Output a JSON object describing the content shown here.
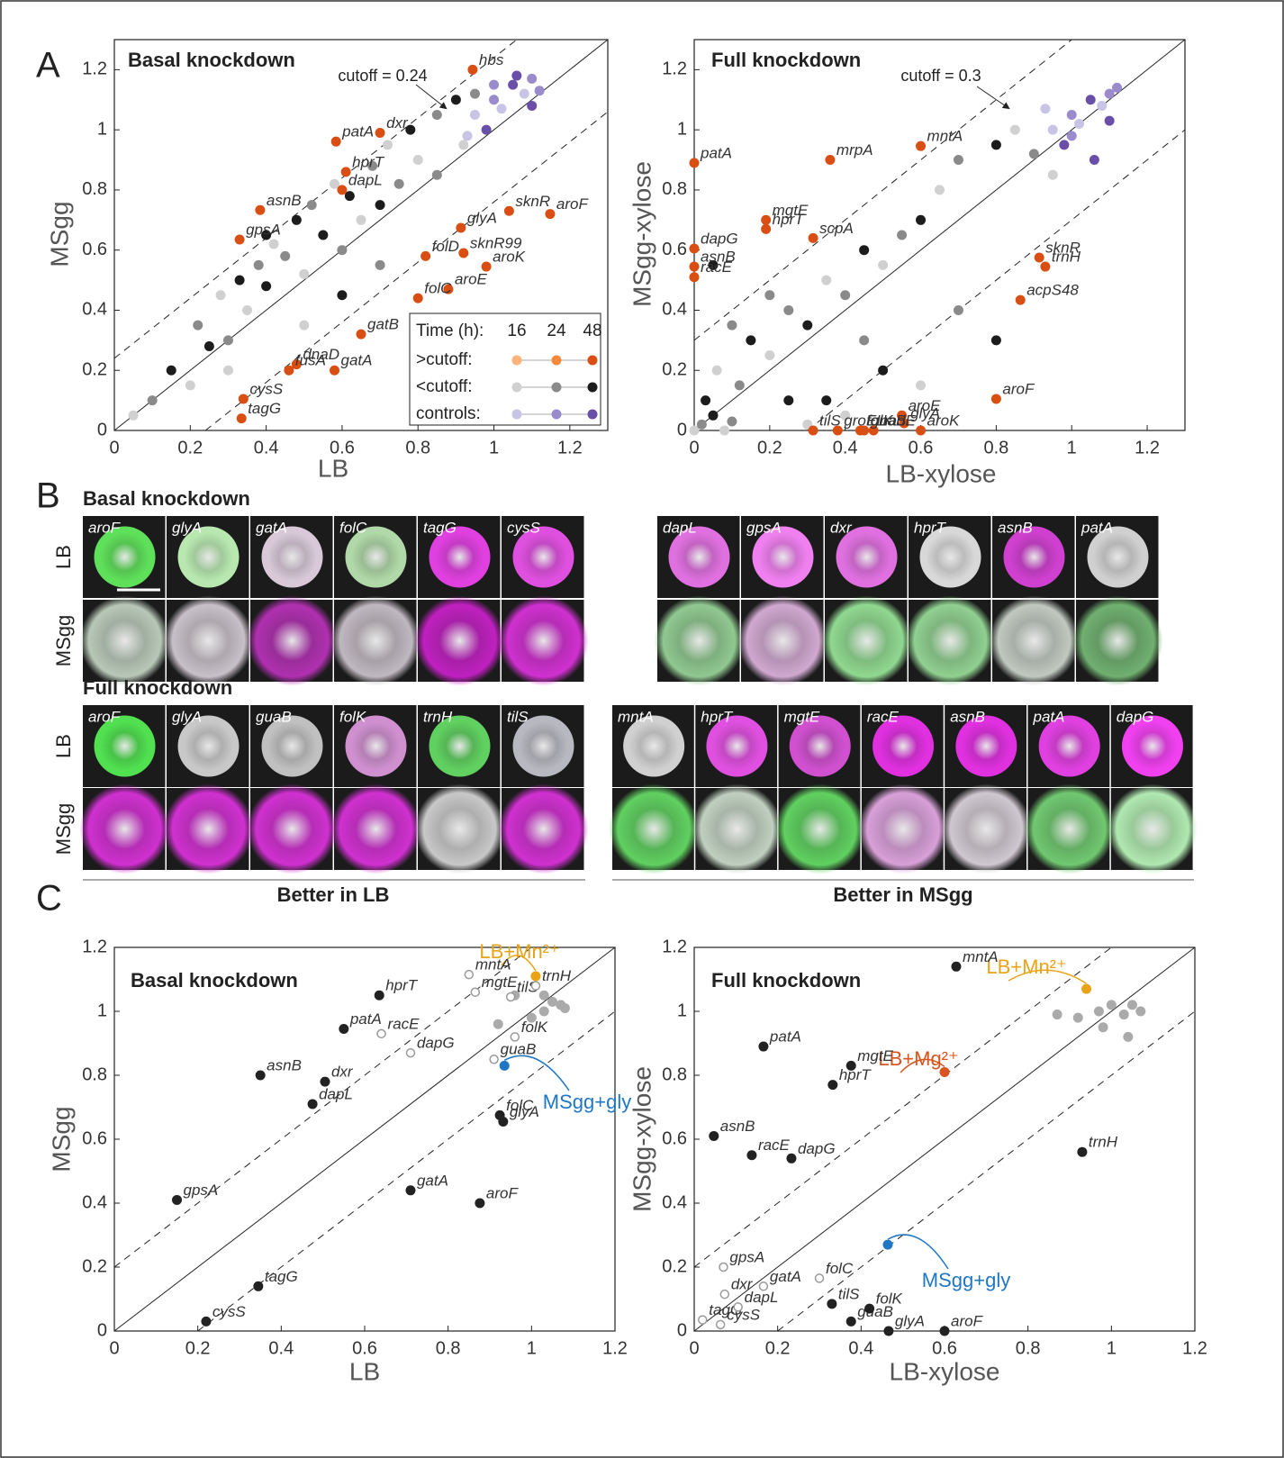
{
  "panel_labels": [
    "A",
    "B",
    "C"
  ],
  "chart_data": [
    {
      "type": "scatter",
      "title": "Basal knockdown",
      "x_label": "LB",
      "y_label": "MSgg",
      "xlim": [
        0,
        1.3
      ],
      "ylim": [
        0,
        1.3
      ],
      "xticks": [
        0,
        0.2,
        0.4,
        0.6,
        0.8,
        1,
        1.2
      ],
      "yticks": [
        0,
        0.2,
        0.4,
        0.6,
        0.8,
        1,
        1.2
      ],
      "cutoff": 0.24,
      "annotation": "cutoff = 0.24",
      "legend_title": "Time (h):",
      "times": [
        16,
        24,
        48
      ],
      "series": [
        {
          "name": ">cutoff:",
          "colors": [
            "#fdb27b",
            "#f5883a",
            "#d94e12"
          ],
          "labels": [
            "hbs",
            "patA",
            "dxr",
            "hprT",
            "dapL",
            "asnB",
            "gpsA",
            "glyA",
            "aroF",
            "sknR",
            "sknR99",
            "folD",
            "aroK",
            "aroE",
            "folC",
            "gatB",
            "dnaD",
            "fusA",
            "gatA",
            "cysS",
            "tagG"
          ],
          "x": [
            0.944,
            0.584,
            0.7,
            0.61,
            0.6,
            0.384,
            0.33,
            0.913,
            1.148,
            1.04,
            0.92,
            0.82,
            0.98,
            0.88,
            0.8,
            0.65,
            0.48,
            0.46,
            0.58,
            0.34,
            0.335
          ],
          "y": [
            1.2,
            0.961,
            0.99,
            0.86,
            0.8,
            0.733,
            0.635,
            0.674,
            0.72,
            0.73,
            0.59,
            0.58,
            0.545,
            0.47,
            0.44,
            0.32,
            0.22,
            0.2,
            0.2,
            0.105,
            0.04
          ],
          "time": [
            48,
            48,
            48,
            48,
            48,
            48,
            48,
            48,
            48,
            48,
            48,
            48,
            48,
            48,
            48,
            48,
            48,
            48,
            48,
            48,
            48
          ]
        },
        {
          "name": "<cutoff:",
          "colors": [
            "#d0d0d0",
            "#8a8a8a",
            "#1c1c1c"
          ],
          "x": [
            0.05,
            0.1,
            0.15,
            0.2,
            0.22,
            0.25,
            0.28,
            0.3,
            0.33,
            0.35,
            0.38,
            0.4,
            0.42,
            0.45,
            0.48,
            0.5,
            0.52,
            0.55,
            0.58,
            0.6,
            0.62,
            0.65,
            0.68,
            0.7,
            0.72,
            0.75,
            0.78,
            0.8,
            0.85,
            0.9,
            0.92,
            0.95,
            0.6,
            0.5,
            0.7,
            0.4,
            0.3,
            0.85
          ],
          "y": [
            0.05,
            0.1,
            0.2,
            0.15,
            0.35,
            0.28,
            0.45,
            0.3,
            0.5,
            0.4,
            0.55,
            0.48,
            0.62,
            0.58,
            0.7,
            0.52,
            0.75,
            0.65,
            0.82,
            0.6,
            0.78,
            0.7,
            0.88,
            0.75,
            0.95,
            0.82,
            1.0,
            0.9,
            1.05,
            1.1,
            0.95,
            1.12,
            0.45,
            0.35,
            0.55,
            0.65,
            0.2,
            0.85
          ],
          "time": [
            16,
            24,
            48,
            16,
            24,
            48,
            16,
            24,
            48,
            16,
            24,
            48,
            16,
            24,
            48,
            16,
            24,
            48,
            16,
            24,
            48,
            16,
            24,
            48,
            16,
            24,
            48,
            16,
            24,
            48,
            16,
            24,
            48,
            16,
            24,
            48,
            16,
            24
          ]
        },
        {
          "name": "controls:",
          "colors": [
            "#c8c4e6",
            "#9a8ccc",
            "#6a4fa8"
          ],
          "x": [
            0.95,
            1.0,
            1.05,
            1.08,
            1.1,
            0.98,
            1.02,
            1.12,
            1.06,
            0.93,
            1.0,
            1.1
          ],
          "y": [
            1.05,
            1.1,
            1.15,
            1.12,
            1.17,
            1.0,
            1.07,
            1.13,
            1.18,
            0.98,
            1.15,
            1.08
          ],
          "time": [
            16,
            24,
            48,
            16,
            24,
            48,
            16,
            24,
            48,
            16,
            24,
            48
          ]
        }
      ]
    },
    {
      "type": "scatter",
      "title": "Full knockdown",
      "x_label": "LB-xylose",
      "y_label": "MSgg-xylose",
      "xlim": [
        0,
        1.3
      ],
      "ylim": [
        0,
        1.3
      ],
      "xticks": [
        0,
        0.2,
        0.4,
        0.6,
        0.8,
        1,
        1.2
      ],
      "yticks": [
        0,
        0.2,
        0.4,
        0.6,
        0.8,
        1,
        1.2
      ],
      "cutoff": 0.3,
      "annotation": "cutoff = 0.3",
      "times": [
        16,
        24,
        48
      ],
      "series": [
        {
          "colors": [
            "#fdb27b",
            "#f5883a",
            "#d94e12"
          ],
          "labels": [
            "patA",
            "mrpA",
            "mntA",
            "mgtE",
            "hprT",
            "scpA",
            "dapG",
            "asnB",
            "racE",
            "sknR",
            "trnH",
            "acpS48",
            "aroF",
            "aroE",
            "glyA",
            "aroK",
            "nadE",
            "tilS",
            "guaB",
            "folK",
            "groEL"
          ],
          "x": [
            0,
            0.36,
            0.6,
            0.19,
            0.19,
            0.315,
            0,
            0,
            0,
            0.914,
            0.93,
            0.864,
            0.8,
            0.55,
            0.556,
            0.6,
            0.475,
            0.315,
            0.45,
            0.44,
            0.38
          ],
          "y": [
            0.89,
            0.9,
            0.946,
            0.7,
            0.67,
            0.64,
            0.605,
            0.545,
            0.51,
            0.575,
            0.545,
            0.434,
            0.105,
            0.05,
            0.024,
            0,
            0,
            0,
            0,
            0,
            0
          ],
          "time": [
            48,
            48,
            48,
            48,
            48,
            48,
            48,
            48,
            48,
            48,
            48,
            48,
            48,
            48,
            48,
            48,
            48,
            48,
            48,
            48,
            48
          ]
        },
        {
          "colors": [
            "#d0d0d0",
            "#8a8a8a",
            "#1c1c1c"
          ],
          "x": [
            0,
            0.02,
            0.05,
            0.08,
            0.1,
            0.03,
            0.06,
            0.12,
            0.15,
            0.2,
            0.25,
            0.3,
            0.35,
            0.4,
            0.45,
            0.5,
            0.55,
            0.6,
            0.65,
            0.7,
            0.8,
            0.85,
            0.9,
            0.35,
            0.4,
            0.2,
            0.5,
            0.6,
            0.7,
            0.8,
            0.95,
            0.1,
            0.05,
            0.3,
            0.45,
            0.25
          ],
          "y": [
            0,
            0.02,
            0.05,
            0,
            0.03,
            0.1,
            0.2,
            0.15,
            0.3,
            0.25,
            0.4,
            0.35,
            0.5,
            0.45,
            0.6,
            0.55,
            0.65,
            0.7,
            0.8,
            0.9,
            0.95,
            1.0,
            0.92,
            0.1,
            0.05,
            0.45,
            0.2,
            0.15,
            0.4,
            0.3,
            0.85,
            0.35,
            0.55,
            0.02,
            0.3,
            0.1
          ],
          "time": [
            16,
            24,
            48,
            16,
            24,
            48,
            16,
            24,
            48,
            16,
            24,
            48,
            16,
            24,
            48,
            16,
            24,
            48,
            16,
            24,
            48,
            16,
            24,
            48,
            16,
            24,
            48,
            16,
            24,
            48,
            16,
            24,
            48,
            16,
            24,
            48
          ]
        },
        {
          "colors": [
            "#c8c4e6",
            "#9a8ccc",
            "#6a4fa8"
          ],
          "x": [
            0.95,
            1.0,
            1.05,
            1.08,
            1.1,
            0.98,
            1.02,
            1.12,
            1.06,
            0.93,
            1.0,
            1.1
          ],
          "y": [
            1.0,
            1.05,
            1.1,
            1.08,
            1.12,
            0.95,
            1.02,
            1.14,
            0.9,
            1.07,
            0.98,
            1.03
          ],
          "time": [
            16,
            24,
            48,
            16,
            24,
            48,
            16,
            24,
            48,
            16,
            24,
            48
          ]
        }
      ]
    },
    {
      "type": "scatter",
      "title": "Basal knockdown",
      "x_label": "LB",
      "y_label": "MSgg",
      "xlim": [
        0,
        1.2
      ],
      "ylim": [
        0,
        1.2
      ],
      "xticks": [
        0,
        0.2,
        0.4,
        0.6,
        0.8,
        1,
        1.2
      ],
      "yticks": [
        0,
        0.2,
        0.4,
        0.6,
        0.8,
        1,
        1.2
      ],
      "cutoff": 0.2,
      "series": [
        {
          "color": "#222222",
          "labels": [
            "patA",
            "hprT",
            "asnB",
            "dxr",
            "dapL",
            "gpsA",
            "gatA",
            "aroF",
            "folC",
            "glyA",
            "tagG",
            "cysS"
          ],
          "x": [
            0.55,
            0.635,
            0.35,
            0.505,
            0.475,
            0.15,
            0.71,
            0.876,
            0.924,
            0.932,
            0.345,
            0.22
          ],
          "y": [
            0.945,
            1.05,
            0.8,
            0.78,
            0.71,
            0.41,
            0.44,
            0.4,
            0.675,
            0.655,
            0.14,
            0.03
          ]
        },
        {
          "color": "#999999",
          "marker": "open",
          "labels": [
            "mntA",
            "mgtE",
            "tilS",
            "trnH",
            "racE",
            "dapG",
            "guaB",
            "folK"
          ],
          "x": [
            0.85,
            0.865,
            0.95,
            1.01,
            0.64,
            0.71,
            0.91,
            0.96
          ],
          "y": [
            1.115,
            1.06,
            1.045,
            1.08,
            0.93,
            0.87,
            0.85,
            0.92
          ]
        },
        {
          "color": "#aaaaaa",
          "x": [
            1.03,
            1.05,
            1.07,
            1.08,
            1.0,
            0.92,
            0.96,
            1.03
          ],
          "y": [
            1.0,
            1.03,
            1.02,
            1.01,
            0.98,
            0.96,
            1.05,
            1.05
          ]
        },
        {
          "name": "LB+Mn²⁺",
          "color": "#e8a317",
          "x": [
            1.01
          ],
          "y": [
            1.11
          ]
        },
        {
          "name": "MSgg+gly",
          "color": "#1f77c4",
          "x": [
            0.935
          ],
          "y": [
            0.83
          ]
        }
      ]
    },
    {
      "type": "scatter",
      "title": "Full knockdown",
      "x_label": "LB-xylose",
      "y_label": "MSgg-xylose",
      "xlim": [
        0,
        1.2
      ],
      "ylim": [
        0,
        1.2
      ],
      "xticks": [
        0,
        0.2,
        0.4,
        0.6,
        0.8,
        1,
        1.2
      ],
      "yticks": [
        0,
        0.2,
        0.4,
        0.6,
        0.8,
        1,
        1.2
      ],
      "cutoff": 0.2,
      "series": [
        {
          "color": "#222222",
          "labels": [
            "mntA",
            "patA",
            "mgtE",
            "hprT",
            "asnB",
            "racE",
            "dapG",
            "trnH",
            "tilS",
            "guaB",
            "folK",
            "glyA",
            "aroF"
          ],
          "x": [
            0.628,
            0.166,
            0.376,
            0.332,
            0.047,
            0.138,
            0.233,
            0.93,
            0.33,
            0.376,
            0.42,
            0.466,
            0.6
          ],
          "y": [
            1.14,
            0.89,
            0.83,
            0.77,
            0.61,
            0.55,
            0.54,
            0.56,
            0.085,
            0.03,
            0.07,
            0,
            0
          ]
        },
        {
          "color": "#999999",
          "marker": "open",
          "labels": [
            "gpsA",
            "dxr",
            "gatA",
            "tagG",
            "dapL",
            "cysS",
            "folC"
          ],
          "x": [
            0.07,
            0.073,
            0.166,
            0.02,
            0.105,
            0.063,
            0.3
          ],
          "y": [
            0.2,
            0.115,
            0.14,
            0.035,
            0.075,
            0.02,
            0.165
          ]
        },
        {
          "color": "#aaaaaa",
          "x": [
            0.87,
            0.92,
            0.97,
            1.0,
            1.03,
            1.05,
            1.07,
            1.04,
            0.98
          ],
          "y": [
            0.99,
            0.98,
            1.0,
            1.02,
            0.99,
            1.02,
            1.0,
            0.92,
            0.95
          ]
        },
        {
          "name": "LB+Mn²⁺",
          "color": "#e8a317",
          "x": [
            0.94
          ],
          "y": [
            1.07
          ]
        },
        {
          "name": "LB+Mg²⁺",
          "color": "#d9541e",
          "x": [
            0.6
          ],
          "y": [
            0.81
          ]
        },
        {
          "name": "MSgg+gly",
          "color": "#1f77c4",
          "x": [
            0.464
          ],
          "y": [
            0.27
          ]
        }
      ]
    }
  ],
  "panel_b": {
    "sections": [
      {
        "title": "Basal knockdown",
        "row_labels": [
          "LB",
          "MSgg"
        ],
        "groups": [
          {
            "genes": [
              "aroF",
              "glyA",
              "gatA",
              "folC",
              "tagG",
              "cysS"
            ],
            "lb_colors": [
              "#5fe05a",
              "#b8e8b0",
              "#d8c8d8",
              "#b0d8a8",
              "#e040e0",
              "#e050e0"
            ],
            "msgg_colors": [
              "#b8c8b8",
              "#c8c0c8",
              "#b030b0",
              "#c0b8c0",
              "#c020c0",
              "#d030d0"
            ]
          },
          {
            "genes": [
              "dapL",
              "gpsA",
              "dxr",
              "hprT",
              "asnB",
              "patA"
            ],
            "lb_colors": [
              "#e070e0",
              "#f080f0",
              "#e070e0",
              "#d8d8d8",
              "#d040d0",
              "#d0d0d0"
            ],
            "msgg_colors": [
              "#90c890",
              "#d0a8d0",
              "#90d890",
              "#90d090",
              "#c0c8c0",
              "#70b070"
            ]
          }
        ]
      },
      {
        "title": "Full knockdown",
        "row_labels": [
          "LB",
          "MSgg"
        ],
        "groups": [
          {
            "genes": [
              "aroF",
              "glyA",
              "guaB",
              "folK",
              "trnH",
              "tilS"
            ],
            "lb_colors": [
              "#50e050",
              "#c8c8c8",
              "#c0c0c0",
              "#d090d0",
              "#60d060",
              "#b8b8c0"
            ],
            "msgg_colors": [
              "#d030d0",
              "#d030d0",
              "#d030d0",
              "#d030d0",
              "#c8c8c8",
              "#d030d0"
            ]
          },
          {
            "genes": [
              "mntA",
              "hprT",
              "mgtE",
              "racE",
              "asnB",
              "patA",
              "dapG"
            ],
            "lb_colors": [
              "#d0d0d0",
              "#e050e0",
              "#d050d0",
              "#e030e0",
              "#e030e0",
              "#e040e0",
              "#f040f0"
            ],
            "msgg_colors": [
              "#60d060",
              "#c0d0c0",
              "#60d060",
              "#d8a0d8",
              "#d0c8d0",
              "#70c870",
              "#b0e8b0"
            ]
          }
        ]
      }
    ],
    "footers": [
      "Better in LB",
      "Better in MSgg"
    ]
  }
}
